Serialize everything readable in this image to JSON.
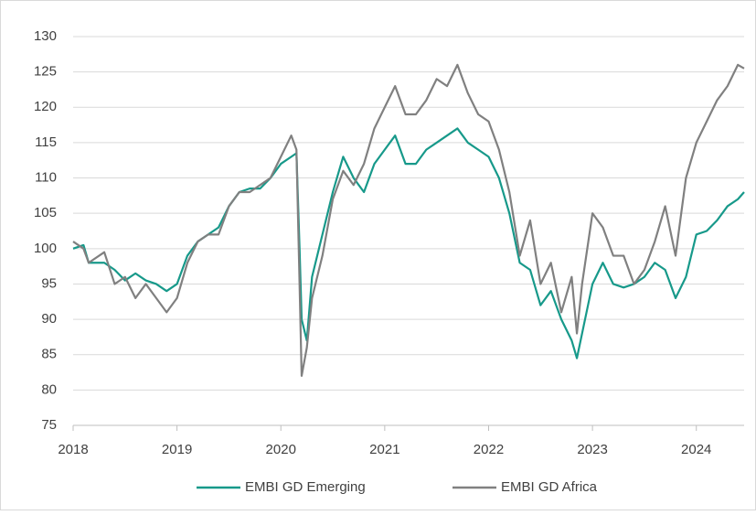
{
  "chart_data": {
    "type": "line",
    "x": [
      2018.0,
      2018.1,
      2018.15,
      2018.3,
      2018.4,
      2018.5,
      2018.6,
      2018.7,
      2018.8,
      2018.9,
      2019.0,
      2019.1,
      2019.2,
      2019.3,
      2019.4,
      2019.5,
      2019.6,
      2019.7,
      2019.8,
      2019.9,
      2020.0,
      2020.1,
      2020.15,
      2020.18,
      2020.2,
      2020.25,
      2020.3,
      2020.4,
      2020.5,
      2020.6,
      2020.7,
      2020.8,
      2020.9,
      2021.0,
      2021.1,
      2021.2,
      2021.3,
      2021.4,
      2021.5,
      2021.6,
      2021.7,
      2021.8,
      2021.9,
      2022.0,
      2022.1,
      2022.2,
      2022.3,
      2022.4,
      2022.5,
      2022.6,
      2022.7,
      2022.8,
      2022.85,
      2022.9,
      2023.0,
      2023.1,
      2023.2,
      2023.3,
      2023.4,
      2023.5,
      2023.6,
      2023.7,
      2023.8,
      2023.9,
      2024.0,
      2024.1,
      2024.2,
      2024.3,
      2024.4,
      2024.46
    ],
    "series": [
      {
        "name": "EMBI GD Emerging",
        "color": "#17998a",
        "values": [
          100,
          100.5,
          98,
          98,
          97,
          95.5,
          96.5,
          95.5,
          95,
          94,
          95,
          99,
          101,
          102,
          103,
          106,
          108,
          108.5,
          108.5,
          110,
          112,
          113,
          113.5,
          100,
          90,
          87,
          96,
          102,
          108,
          113,
          110,
          108,
          112,
          114,
          116,
          112,
          112,
          114,
          115,
          116,
          117,
          115,
          114,
          113,
          110,
          105,
          98,
          97,
          92,
          94,
          90,
          87,
          84.5,
          88,
          95,
          98,
          95,
          94.5,
          95,
          96,
          98,
          97,
          93,
          96,
          102,
          102.5,
          104,
          106,
          107,
          108
        ]
      },
      {
        "name": "EMBI GD Africa",
        "color": "#808080",
        "values": [
          101,
          100,
          98,
          99.5,
          95,
          96,
          93,
          95,
          93,
          91,
          93,
          98,
          101,
          102,
          102,
          106,
          108,
          108,
          109,
          110,
          113,
          116,
          114,
          95,
          82,
          86,
          93,
          99,
          107,
          111,
          109,
          112,
          117,
          120,
          123,
          119,
          119,
          121,
          124,
          123,
          126,
          122,
          119,
          118,
          114,
          108,
          99,
          104,
          95,
          98,
          91,
          96,
          88,
          95,
          105,
          103,
          99,
          99,
          95,
          97,
          101,
          106,
          99,
          110,
          115,
          118,
          121,
          123,
          126,
          125.5
        ]
      }
    ],
    "xlim": [
      2018,
      2024.46
    ],
    "xticks": [
      2018,
      2019,
      2020,
      2021,
      2022,
      2023,
      2024
    ],
    "ylim": [
      75,
      130
    ],
    "yticks": [
      75,
      80,
      85,
      90,
      95,
      100,
      105,
      110,
      115,
      120,
      125,
      130
    ],
    "grid": true,
    "legend": "bottom"
  }
}
